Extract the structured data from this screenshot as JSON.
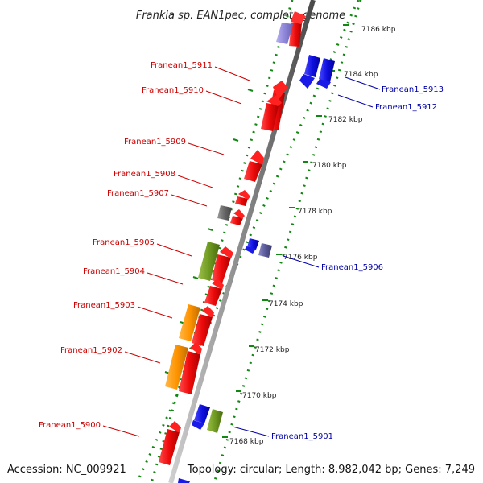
{
  "title": "Frankia sp. EAN1pec, complete genome",
  "footer": {
    "accession": "Accession: NC_009921",
    "summary": "Topology: circular; Length: 8,982,042 bp; Genes: 7,249"
  },
  "colors": {
    "forward": "#ee1111",
    "reverse": "#1111dd",
    "label_forward": "#cc0000",
    "label_reverse": "#0000aa",
    "axis": "#888888",
    "tick": "#118811"
  },
  "ticks": [
    {
      "label": "7168 kbp"
    },
    {
      "label": "7170 kbp"
    },
    {
      "label": "7172 kbp"
    },
    {
      "label": "7174 kbp"
    },
    {
      "label": "7176 kbp"
    },
    {
      "label": "7178 kbp"
    },
    {
      "label": "7180 kbp"
    },
    {
      "label": "7182 kbp"
    },
    {
      "label": "7184 kbp"
    },
    {
      "label": "7186 kbp"
    }
  ],
  "labeled_genes": [
    {
      "name": "Franean1_5900",
      "strand": "forward"
    },
    {
      "name": "Franean1_5901",
      "strand": "reverse"
    },
    {
      "name": "Franean1_5902",
      "strand": "forward"
    },
    {
      "name": "Franean1_5903",
      "strand": "forward"
    },
    {
      "name": "Franean1_5904",
      "strand": "forward"
    },
    {
      "name": "Franean1_5905",
      "strand": "forward"
    },
    {
      "name": "Franean1_5906",
      "strand": "reverse"
    },
    {
      "name": "Franean1_5907",
      "strand": "forward"
    },
    {
      "name": "Franean1_5908",
      "strand": "forward"
    },
    {
      "name": "Franean1_5909",
      "strand": "forward"
    },
    {
      "name": "Franean1_5910",
      "strand": "forward"
    },
    {
      "name": "Franean1_5911",
      "strand": "forward"
    },
    {
      "name": "Franean1_5912",
      "strand": "reverse"
    },
    {
      "name": "Franean1_5913",
      "strand": "reverse"
    }
  ]
}
